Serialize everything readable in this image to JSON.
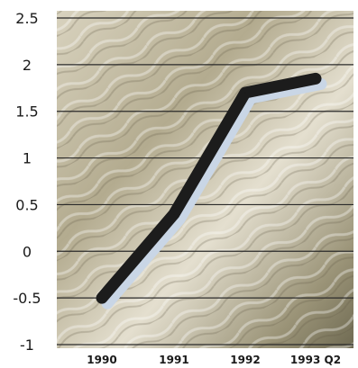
{
  "chart_data": {
    "type": "line",
    "title": "",
    "xlabel": "",
    "ylabel": "",
    "categories": [
      "1990",
      "1991",
      "1992",
      "1993 Q2"
    ],
    "y_ticks": [
      "2.5",
      "2",
      "1.5",
      "1",
      "0.5",
      "0",
      "-0.5",
      "-1"
    ],
    "series": [
      {
        "values": [
          -0.5,
          0.4,
          1.7,
          1.85
        ]
      }
    ],
    "ylim": [
      -1,
      2.5
    ],
    "grid": true,
    "legend": "none",
    "colors": {
      "line": "#1c1c1c",
      "line_shadow": "#c9d6e6",
      "grid": "#2a2a2a",
      "background_light": "#d8d2bd",
      "background_dark": "#7a7458"
    }
  }
}
